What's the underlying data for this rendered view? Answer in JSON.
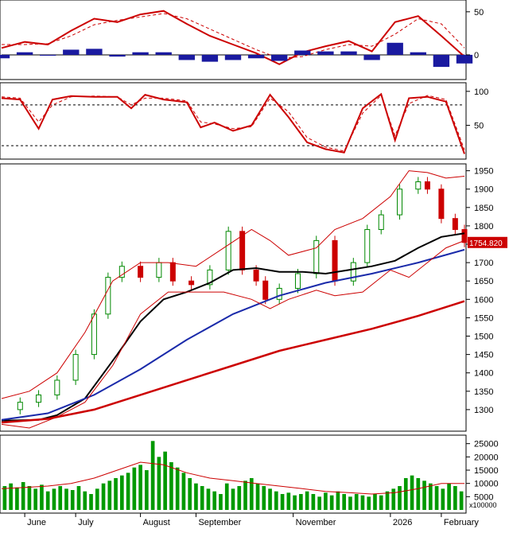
{
  "chart_data": [
    {
      "panel": "macd",
      "type": "line",
      "ylim": [
        -25,
        60
      ],
      "ticks": [
        50,
        0
      ],
      "tick_labels": [
        "50",
        "0"
      ],
      "series": [
        {
          "color": "#cc0000",
          "style": "solid",
          "x": [
            0,
            0.05,
            0.1,
            0.15,
            0.2,
            0.25,
            0.3,
            0.35,
            0.4,
            0.45,
            0.5,
            0.55,
            0.6,
            0.65,
            0.7,
            0.75,
            0.8,
            0.85,
            0.9,
            0.95,
            1.0
          ],
          "values": [
            8,
            15,
            12,
            28,
            42,
            38,
            47,
            51,
            36,
            22,
            12,
            2,
            -11,
            3,
            10,
            16,
            4,
            38,
            45,
            22,
            -2
          ]
        },
        {
          "color": "#cc0000",
          "style": "dashed",
          "x": [
            0,
            0.05,
            0.1,
            0.15,
            0.2,
            0.25,
            0.3,
            0.35,
            0.4,
            0.45,
            0.5,
            0.55,
            0.6,
            0.65,
            0.7,
            0.75,
            0.8,
            0.85,
            0.9,
            0.95,
            1.0
          ],
          "values": [
            12,
            12,
            13,
            22,
            35,
            40,
            44,
            48,
            42,
            30,
            18,
            6,
            -4,
            -2,
            6,
            12,
            10,
            24,
            42,
            36,
            8
          ]
        },
        {
          "color": "#1a1aa0",
          "style": "histogram",
          "x": [
            0,
            0.05,
            0.1,
            0.15,
            0.2,
            0.25,
            0.3,
            0.35,
            0.4,
            0.45,
            0.5,
            0.55,
            0.6,
            0.65,
            0.7,
            0.75,
            0.8,
            0.85,
            0.9,
            0.95,
            1.0
          ],
          "values": [
            -4,
            3,
            -1,
            6,
            7,
            -2,
            3,
            3,
            -6,
            -8,
            -6,
            -4,
            -7,
            5,
            4,
            4,
            -6,
            14,
            3,
            -14,
            -10
          ]
        }
      ]
    },
    {
      "panel": "stochastic",
      "type": "line",
      "ylim": [
        5,
        108
      ],
      "ticks": [
        100,
        50
      ],
      "tick_labels": [
        "100",
        "50"
      ],
      "reference_lines": [
        80,
        20
      ],
      "series": [
        {
          "color": "#cc0000",
          "style": "solid",
          "x": [
            0,
            0.04,
            0.08,
            0.11,
            0.15,
            0.2,
            0.25,
            0.28,
            0.31,
            0.35,
            0.4,
            0.43,
            0.46,
            0.5,
            0.54,
            0.58,
            0.62,
            0.66,
            0.7,
            0.74,
            0.78,
            0.82,
            0.85,
            0.88,
            0.92,
            0.96,
            1.0
          ],
          "values": [
            90,
            88,
            45,
            88,
            93,
            92,
            92,
            75,
            95,
            88,
            84,
            47,
            54,
            42,
            50,
            95,
            62,
            25,
            15,
            10,
            75,
            96,
            28,
            90,
            92,
            85,
            8
          ]
        },
        {
          "color": "#cc0000",
          "style": "dashed",
          "x": [
            0,
            0.04,
            0.08,
            0.11,
            0.15,
            0.2,
            0.25,
            0.28,
            0.31,
            0.35,
            0.4,
            0.43,
            0.46,
            0.5,
            0.54,
            0.58,
            0.62,
            0.66,
            0.7,
            0.74,
            0.78,
            0.82,
            0.85,
            0.88,
            0.92,
            0.96,
            1.0
          ],
          "values": [
            92,
            90,
            55,
            80,
            92,
            93,
            92,
            80,
            90,
            90,
            86,
            55,
            52,
            45,
            48,
            90,
            70,
            32,
            18,
            12,
            68,
            94,
            35,
            82,
            94,
            88,
            14
          ]
        }
      ]
    },
    {
      "panel": "price",
      "type": "line",
      "ylim": [
        1250,
        1960
      ],
      "ticks": [
        1950,
        1900,
        1850,
        1800,
        1750,
        1700,
        1650,
        1600,
        1550,
        1500,
        1450,
        1400,
        1350,
        1300
      ],
      "tick_labels": [
        "1950",
        "1900",
        "1850",
        "1800",
        "1750",
        "1700",
        "1650",
        "1600",
        "1550",
        "1500",
        "1450",
        "1400",
        "1350",
        "1300"
      ],
      "last_value_label": "1754.820",
      "last_value": 1754.82,
      "series": [
        {
          "color": "#cc0000",
          "style": "price",
          "x": [
            0,
            0.04,
            0.08,
            0.12,
            0.16,
            0.2,
            0.23,
            0.26,
            0.3,
            0.34,
            0.37,
            0.41,
            0.45,
            0.49,
            0.52,
            0.55,
            0.57,
            0.6,
            0.64,
            0.68,
            0.72,
            0.76,
            0.79,
            0.82,
            0.86,
            0.9,
            0.92,
            0.95,
            0.98,
            1.0
          ],
          "values": [
            1300,
            1320,
            1340,
            1380,
            1450,
            1560,
            1660,
            1690,
            1660,
            1700,
            1650,
            1640,
            1680,
            1785,
            1680,
            1650,
            1600,
            1630,
            1670,
            1760,
            1650,
            1700,
            1790,
            1830,
            1900,
            1920,
            1900,
            1820,
            1790,
            1754.82
          ]
        },
        {
          "color": "#000000",
          "style": "ma",
          "x": [
            0,
            0.08,
            0.12,
            0.18,
            0.25,
            0.3,
            0.35,
            0.4,
            0.45,
            0.5,
            0.55,
            0.6,
            0.65,
            0.7,
            0.75,
            0.8,
            0.85,
            0.9,
            0.95,
            1.0
          ],
          "values": [
            1270,
            1272,
            1285,
            1330,
            1450,
            1540,
            1600,
            1620,
            1645,
            1680,
            1685,
            1675,
            1675,
            1670,
            1680,
            1690,
            1705,
            1740,
            1770,
            1780
          ]
        },
        {
          "color": "#1a2aaa",
          "style": "ma",
          "x": [
            0,
            0.1,
            0.2,
            0.3,
            0.4,
            0.5,
            0.6,
            0.7,
            0.8,
            0.9,
            1.0
          ],
          "values": [
            1272,
            1290,
            1340,
            1410,
            1490,
            1560,
            1610,
            1645,
            1670,
            1700,
            1735
          ]
        },
        {
          "color": "#cc0000",
          "style": "ma-thick",
          "x": [
            0,
            0.1,
            0.2,
            0.3,
            0.4,
            0.5,
            0.6,
            0.7,
            0.8,
            0.9,
            1.0
          ],
          "values": [
            1265,
            1275,
            1300,
            1340,
            1380,
            1420,
            1460,
            1490,
            1520,
            1555,
            1595
          ]
        },
        {
          "color": "#cc0000",
          "style": "band",
          "x": [
            0,
            0.06,
            0.12,
            0.18,
            0.24,
            0.3,
            0.36,
            0.42,
            0.48,
            0.54,
            0.58,
            0.62,
            0.68,
            0.72,
            0.78,
            0.84,
            0.88,
            0.92,
            0.96,
            1.0
          ],
          "values": [
            1330,
            1350,
            1400,
            1510,
            1650,
            1700,
            1700,
            1690,
            1740,
            1790,
            1760,
            1720,
            1740,
            1790,
            1820,
            1880,
            1950,
            1945,
            1930,
            1935
          ]
        },
        {
          "color": "#cc0000",
          "style": "band",
          "x": [
            0,
            0.06,
            0.12,
            0.18,
            0.24,
            0.3,
            0.36,
            0.42,
            0.48,
            0.54,
            0.58,
            0.62,
            0.68,
            0.72,
            0.78,
            0.84,
            0.88,
            0.92,
            0.96,
            1.0
          ],
          "values": [
            1260,
            1250,
            1280,
            1320,
            1420,
            1560,
            1620,
            1620,
            1620,
            1600,
            1575,
            1600,
            1625,
            1610,
            1620,
            1680,
            1660,
            1700,
            1740,
            1760
          ]
        }
      ]
    },
    {
      "panel": "volume",
      "type": "bar",
      "ylim": [
        0,
        27000
      ],
      "ticks": [
        25000,
        20000,
        15000,
        10000,
        5000
      ],
      "tick_labels": [
        "25000",
        "20000",
        "15000",
        "10000",
        "5000"
      ],
      "scale_label": "x100000",
      "x_labels": [
        "June",
        "July",
        "August",
        "September",
        "November",
        "2026",
        "February"
      ],
      "x_label_positions": [
        0.05,
        0.16,
        0.3,
        0.42,
        0.63,
        0.84,
        0.95
      ],
      "bar_color": "#009900",
      "ma_color": "#cc0000",
      "values": [
        9000,
        10000,
        8500,
        10500,
        9000,
        8000,
        9500,
        7000,
        8000,
        9000,
        8000,
        7500,
        9000,
        7000,
        6000,
        8000,
        10000,
        11000,
        12000,
        13000,
        14000,
        16000,
        17000,
        15000,
        26000,
        20000,
        22000,
        18000,
        16000,
        14000,
        12000,
        10000,
        9000,
        8000,
        7000,
        6000,
        10000,
        8000,
        9000,
        11000,
        12000,
        10000,
        9000,
        8000,
        7000,
        6000,
        6500,
        5500,
        6000,
        7000,
        6000,
        5000,
        6500,
        5500,
        7000,
        6000,
        5000,
        6000,
        5500,
        5000,
        6000,
        5500,
        7000,
        8000,
        9000,
        12000,
        13000,
        12000,
        11000,
        10000,
        9000,
        8000,
        10000,
        9000,
        7000
      ],
      "ma_values": [
        8000,
        8500,
        9000,
        10000,
        12000,
        15000,
        18000,
        17000,
        14000,
        12000,
        11000,
        10000,
        9000,
        8000,
        7000,
        6500,
        6000,
        6500,
        8000,
        10000,
        10000
      ]
    }
  ]
}
